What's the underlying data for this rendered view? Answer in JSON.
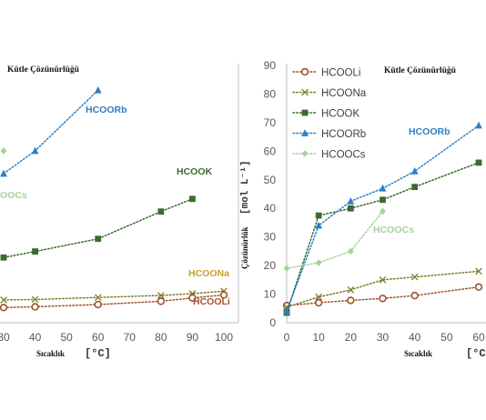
{
  "chart_data": [
    {
      "type": "line",
      "title": "Kütle Çözünürlüğü",
      "xlabel": "Sıcaklık",
      "xunit": "[°C]",
      "x_ticks": [
        "30",
        "40",
        "50",
        "60",
        "70",
        "80",
        "90",
        "100"
      ],
      "xlim": [
        30,
        100
      ],
      "grid": false,
      "series": [
        {
          "name": "HCOORb",
          "color": "#2e7fc6",
          "marker": "triangle",
          "x": [
            30,
            40,
            60
          ],
          "y": [
            590,
            680,
            920
          ]
        },
        {
          "name": "HCOOK",
          "color": "#3b6b2f",
          "marker": "square",
          "x": [
            30,
            40,
            60,
            80,
            90
          ],
          "y": [
            258,
            282,
            332,
            440,
            490
          ]
        },
        {
          "name": "HCOONa",
          "color": "#7d7d2a",
          "marker": "x",
          "x": [
            30,
            40,
            60,
            80,
            90,
            100
          ],
          "y": [
            90,
            92,
            100,
            108,
            115,
            125
          ]
        },
        {
          "name": "HCOOLi",
          "color": "#a0522d",
          "marker": "circle",
          "x": [
            30,
            40,
            60,
            80,
            90,
            100
          ],
          "y": [
            60,
            63,
            72,
            85,
            98,
            110
          ]
        },
        {
          "name": "HCOOCs",
          "color": "#a6d39a",
          "marker": "diamond",
          "x": [
            30
          ],
          "y": [
            680
          ]
        }
      ],
      "annotations": [
        "HCOORb",
        "HCOOK",
        "HCOONa",
        "HCOOLi",
        "OOCs"
      ]
    },
    {
      "type": "line",
      "title": "Kütle Çözünürlüğü",
      "xlabel": "Sıcaklık",
      "xunit": "[°C]",
      "ylabel": "Çözünürlük",
      "yunit": "[mol L⁻¹]",
      "x_ticks": [
        "0",
        "10",
        "20",
        "30",
        "40",
        "50",
        "60"
      ],
      "y_ticks": [
        "0",
        "10",
        "20",
        "30",
        "40",
        "50",
        "60",
        "70",
        "80",
        "90"
      ],
      "xlim": [
        0,
        60
      ],
      "ylim": [
        0,
        90
      ],
      "grid": false,
      "legend": "top-left",
      "series": [
        {
          "name": "HCOOLi",
          "color": "#a0522d",
          "marker": "circle",
          "x": [
            0,
            10,
            20,
            30,
            40,
            60
          ],
          "y": [
            6,
            7,
            7.8,
            8.5,
            9.5,
            12.5
          ]
        },
        {
          "name": "HCOONa",
          "color": "#7d7d2a",
          "marker": "x",
          "x": [
            0,
            10,
            20,
            30,
            40,
            60
          ],
          "y": [
            5.5,
            9,
            11.5,
            15,
            16,
            18
          ]
        },
        {
          "name": "HCOOK",
          "color": "#3b6b2f",
          "marker": "square",
          "x": [
            0,
            10,
            20,
            30,
            40,
            60
          ],
          "y": [
            3.5,
            37.5,
            40,
            43,
            47.5,
            56
          ]
        },
        {
          "name": "HCOORb",
          "color": "#2e7fc6",
          "marker": "triangle",
          "x": [
            0,
            10,
            20,
            30,
            40,
            60
          ],
          "y": [
            4,
            34,
            42.5,
            47,
            53,
            69
          ]
        },
        {
          "name": "HCOOCs",
          "color": "#a6d39a",
          "marker": "diamond",
          "x": [
            0,
            10,
            20,
            30
          ],
          "y": [
            19,
            21,
            25,
            39
          ]
        }
      ],
      "annotations": [
        "HCOORb",
        "HCOOCs"
      ]
    }
  ]
}
